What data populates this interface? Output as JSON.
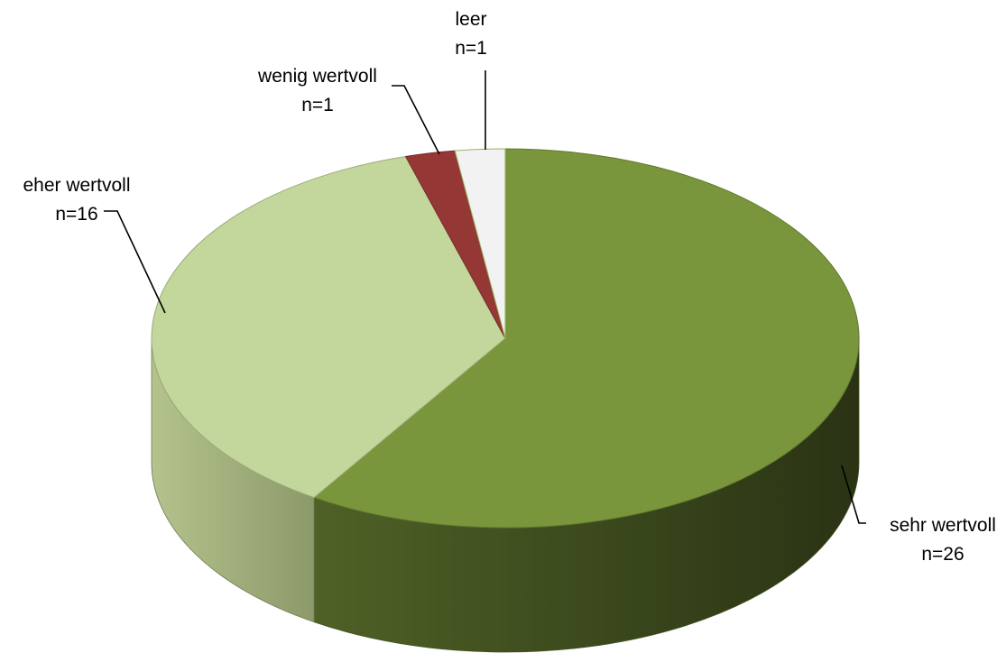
{
  "chart_data": {
    "type": "pie",
    "style": "3d",
    "slices": [
      {
        "category": "sehr wertvoll",
        "count_label": "n=26",
        "value": 26,
        "color": "#7a963c"
      },
      {
        "category": "eher wertvoll",
        "count_label": "n=16",
        "value": 16,
        "color": "#c3d69b"
      },
      {
        "category": "wenig wertvoll",
        "count_label": "n=1",
        "value": 1,
        "color": "#953735"
      },
      {
        "category": "leer",
        "count_label": "n=1",
        "value": 1,
        "color": "#f2f2f2"
      }
    ],
    "legend": "none",
    "start_angle_deg": 0,
    "direction": "clockwise"
  }
}
